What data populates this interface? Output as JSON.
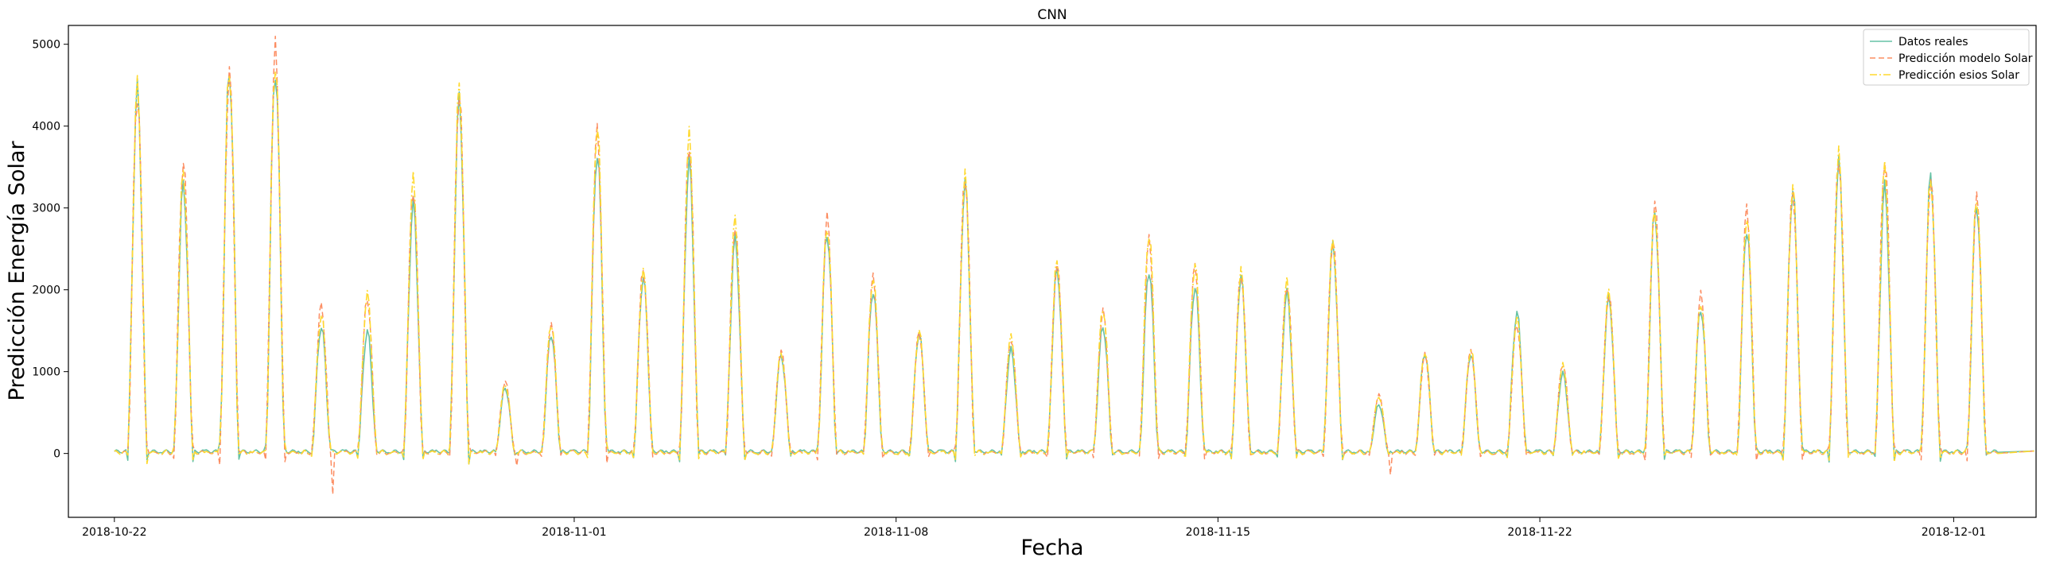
{
  "chart_data": {
    "type": "line",
    "title": "CNN",
    "xlabel": "Fecha",
    "ylabel": "Predicción Energía Solar",
    "xlim": [
      "2018-10-21T00:00",
      "2018-12-02T19:00"
    ],
    "ylim": [
      -780,
      5230
    ],
    "x_ticks": [
      "2018-10-22",
      "2018-11-01",
      "2018-11-08",
      "2018-11-15",
      "2018-11-22",
      "2018-12-01"
    ],
    "y_ticks": [
      0,
      1000,
      2000,
      3000,
      4000,
      5000
    ],
    "grid": false,
    "legend_position": "top-right",
    "time_resolution": "hourly",
    "series": [
      {
        "name": "Datos reales",
        "color": "#66c2a5",
        "style": "solid",
        "daily_peaks": [
          {
            "date": "2018-10-22",
            "peak": 4450
          },
          {
            "date": "2018-10-23",
            "peak": 3280
          },
          {
            "date": "2018-10-24",
            "peak": 4690
          },
          {
            "date": "2018-10-25",
            "peak": 4700
          },
          {
            "date": "2018-10-26",
            "peak": 1560
          },
          {
            "date": "2018-10-27",
            "peak": 1500
          },
          {
            "date": "2018-10-28",
            "peak": 3050
          },
          {
            "date": "2018-10-29",
            "peak": 4320
          },
          {
            "date": "2018-10-30",
            "peak": 800
          },
          {
            "date": "2018-10-31",
            "peak": 1460
          },
          {
            "date": "2018-11-01",
            "peak": 3700
          },
          {
            "date": "2018-11-02",
            "peak": 2150
          },
          {
            "date": "2018-11-03",
            "peak": 3560
          },
          {
            "date": "2018-11-04",
            "peak": 2620
          },
          {
            "date": "2018-11-05",
            "peak": 1200
          },
          {
            "date": "2018-11-06",
            "peak": 2700
          },
          {
            "date": "2018-11-07",
            "peak": 2000
          },
          {
            "date": "2018-11-08",
            "peak": 1470
          },
          {
            "date": "2018-11-09",
            "peak": 3300
          },
          {
            "date": "2018-11-10",
            "peak": 1270
          },
          {
            "date": "2018-11-11",
            "peak": 2250
          },
          {
            "date": "2018-11-12",
            "peak": 1560
          },
          {
            "date": "2018-11-13",
            "peak": 2250
          },
          {
            "date": "2018-11-14",
            "peak": 2050
          },
          {
            "date": "2018-11-15",
            "peak": 2150
          },
          {
            "date": "2018-11-16",
            "peak": 1960
          },
          {
            "date": "2018-11-17",
            "peak": 2550
          },
          {
            "date": "2018-11-18",
            "peak": 600
          },
          {
            "date": "2018-11-19",
            "peak": 1230
          },
          {
            "date": "2018-11-20",
            "peak": 1220
          },
          {
            "date": "2018-11-21",
            "peak": 1730
          },
          {
            "date": "2018-11-22",
            "peak": 980
          },
          {
            "date": "2018-11-23",
            "peak": 1900
          },
          {
            "date": "2018-11-24",
            "peak": 2950
          },
          {
            "date": "2018-11-25",
            "peak": 1770
          },
          {
            "date": "2018-11-26",
            "peak": 2750
          },
          {
            "date": "2018-11-27",
            "peak": 3220
          },
          {
            "date": "2018-11-28",
            "peak": 3550
          },
          {
            "date": "2018-11-29",
            "peak": 3250
          },
          {
            "date": "2018-11-30",
            "peak": 3400
          },
          {
            "date": "2018-12-01",
            "peak": 3050
          }
        ]
      },
      {
        "name": "Predicción modelo Solar",
        "color": "#fc8d62",
        "style": "dashed",
        "daily_peaks": [
          {
            "date": "2018-10-22",
            "peak": 4400
          },
          {
            "date": "2018-10-23",
            "peak": 3580
          },
          {
            "date": "2018-10-24",
            "peak": 4640
          },
          {
            "date": "2018-10-25",
            "peak": 4950
          },
          {
            "date": "2018-10-26",
            "peak": 1820
          },
          {
            "date": "2018-10-27",
            "peak": 1900
          },
          {
            "date": "2018-10-28",
            "peak": 3250
          },
          {
            "date": "2018-10-29",
            "peak": 4420
          },
          {
            "date": "2018-10-30",
            "peak": 880
          },
          {
            "date": "2018-10-31",
            "peak": 1560
          },
          {
            "date": "2018-11-01",
            "peak": 3950
          },
          {
            "date": "2018-11-02",
            "peak": 2250
          },
          {
            "date": "2018-11-03",
            "peak": 3800
          },
          {
            "date": "2018-11-04",
            "peak": 2800
          },
          {
            "date": "2018-11-05",
            "peak": 1260
          },
          {
            "date": "2018-11-06",
            "peak": 2880
          },
          {
            "date": "2018-11-07",
            "peak": 2150
          },
          {
            "date": "2018-11-08",
            "peak": 1480
          },
          {
            "date": "2018-11-09",
            "peak": 3400
          },
          {
            "date": "2018-11-10",
            "peak": 1400
          },
          {
            "date": "2018-11-11",
            "peak": 2320
          },
          {
            "date": "2018-11-12",
            "peak": 1740
          },
          {
            "date": "2018-11-13",
            "peak": 2600
          },
          {
            "date": "2018-11-14",
            "peak": 2300
          },
          {
            "date": "2018-11-15",
            "peak": 2200
          },
          {
            "date": "2018-11-16",
            "peak": 2080
          },
          {
            "date": "2018-11-17",
            "peak": 2620
          },
          {
            "date": "2018-11-18",
            "peak": 720
          },
          {
            "date": "2018-11-19",
            "peak": 1200
          },
          {
            "date": "2018-11-20",
            "peak": 1250
          },
          {
            "date": "2018-11-21",
            "peak": 1580
          },
          {
            "date": "2018-11-22",
            "peak": 1100
          },
          {
            "date": "2018-11-23",
            "peak": 1950
          },
          {
            "date": "2018-11-24",
            "peak": 3060
          },
          {
            "date": "2018-11-25",
            "peak": 1940
          },
          {
            "date": "2018-11-26",
            "peak": 2980
          },
          {
            "date": "2018-11-27",
            "peak": 3200
          },
          {
            "date": "2018-11-28",
            "peak": 3620
          },
          {
            "date": "2018-11-29",
            "peak": 3620
          },
          {
            "date": "2018-11-30",
            "peak": 3350
          },
          {
            "date": "2018-12-01",
            "peak": 3120
          }
        ],
        "notable_values": [
          {
            "date": "2018-10-26",
            "value": -500
          },
          {
            "date": "2018-10-30",
            "value": -150
          },
          {
            "date": "2018-11-18",
            "value": -260
          }
        ]
      },
      {
        "name": "Predicción esios Solar",
        "color": "#ffd92f",
        "style": "dashdot",
        "daily_peaks": [
          {
            "date": "2018-10-22",
            "peak": 4500
          },
          {
            "date": "2018-10-23",
            "peak": 3450
          },
          {
            "date": "2018-10-24",
            "peak": 4720
          },
          {
            "date": "2018-10-25",
            "peak": 4800
          },
          {
            "date": "2018-10-26",
            "peak": 1700
          },
          {
            "date": "2018-10-27",
            "peak": 1950
          },
          {
            "date": "2018-10-28",
            "peak": 3350
          },
          {
            "date": "2018-10-29",
            "peak": 4480
          },
          {
            "date": "2018-10-30",
            "peak": 850
          },
          {
            "date": "2018-10-31",
            "peak": 1600
          },
          {
            "date": "2018-11-01",
            "peak": 4020
          },
          {
            "date": "2018-11-02",
            "peak": 2230
          },
          {
            "date": "2018-11-03",
            "peak": 3880
          },
          {
            "date": "2018-11-04",
            "peak": 2860
          },
          {
            "date": "2018-11-05",
            "peak": 1240
          },
          {
            "date": "2018-11-06",
            "peak": 2800
          },
          {
            "date": "2018-11-07",
            "peak": 2160
          },
          {
            "date": "2018-11-08",
            "peak": 1500
          },
          {
            "date": "2018-11-09",
            "peak": 3380
          },
          {
            "date": "2018-11-10",
            "peak": 1430
          },
          {
            "date": "2018-11-11",
            "peak": 2360
          },
          {
            "date": "2018-11-12",
            "peak": 1780
          },
          {
            "date": "2018-11-13",
            "peak": 2700
          },
          {
            "date": "2018-11-14",
            "peak": 2320
          },
          {
            "date": "2018-11-15",
            "peak": 2230
          },
          {
            "date": "2018-11-16",
            "peak": 2100
          },
          {
            "date": "2018-11-17",
            "peak": 2600
          },
          {
            "date": "2018-11-18",
            "peak": 700
          },
          {
            "date": "2018-11-19",
            "peak": 1250
          },
          {
            "date": "2018-11-20",
            "peak": 1270
          },
          {
            "date": "2018-11-21",
            "peak": 1650
          },
          {
            "date": "2018-11-22",
            "peak": 1080
          },
          {
            "date": "2018-11-23",
            "peak": 1980
          },
          {
            "date": "2018-11-24",
            "peak": 3000
          },
          {
            "date": "2018-11-25",
            "peak": 1850
          },
          {
            "date": "2018-11-26",
            "peak": 2900
          },
          {
            "date": "2018-11-27",
            "peak": 3250
          },
          {
            "date": "2018-11-28",
            "peak": 3650
          },
          {
            "date": "2018-11-29",
            "peak": 3500
          },
          {
            "date": "2018-11-30",
            "peak": 3350
          },
          {
            "date": "2018-12-01",
            "peak": 3150
          }
        ]
      }
    ]
  }
}
